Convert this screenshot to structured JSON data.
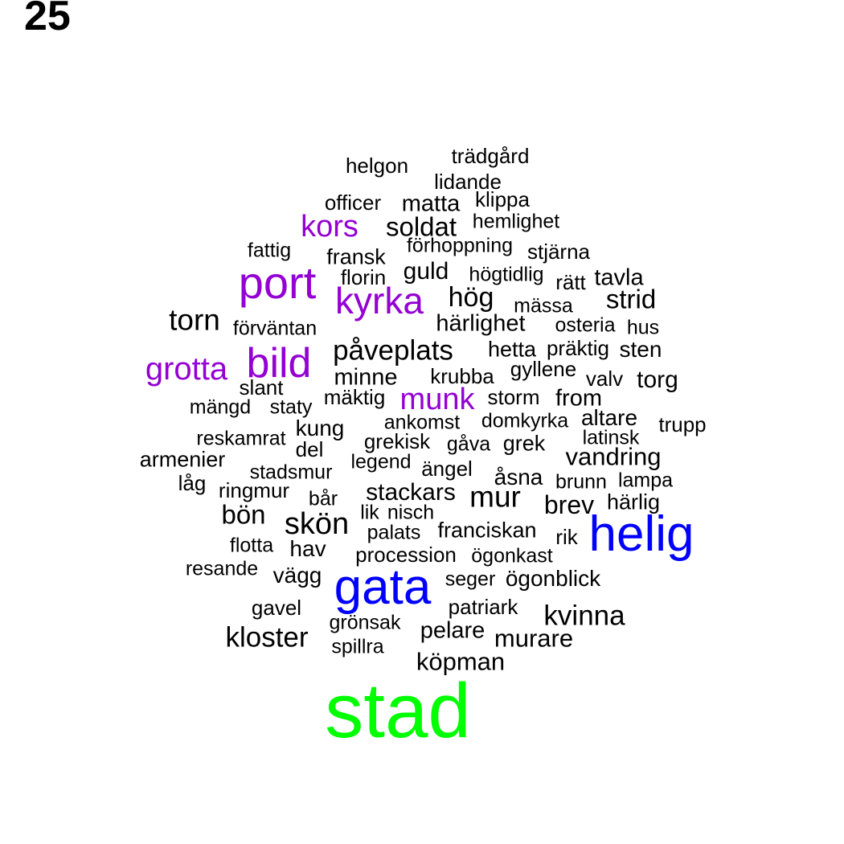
{
  "page_number": "25",
  "colors": {
    "black": "#000000",
    "purple": "#9400d3",
    "blue": "#0000ff",
    "green": "#00ff00"
  },
  "words": [
    {
      "text": "trädgård",
      "color": "black"
    },
    {
      "text": "helgon",
      "color": "black"
    },
    {
      "text": "lidande",
      "color": "black"
    },
    {
      "text": "officer",
      "color": "black"
    },
    {
      "text": "matta",
      "color": "black"
    },
    {
      "text": "klippa",
      "color": "black"
    },
    {
      "text": "kors",
      "color": "purple"
    },
    {
      "text": "soldat",
      "color": "black"
    },
    {
      "text": "hemlighet",
      "color": "black"
    },
    {
      "text": "förhoppning",
      "color": "black"
    },
    {
      "text": "fattig",
      "color": "black"
    },
    {
      "text": "stjärna",
      "color": "black"
    },
    {
      "text": "fransk",
      "color": "black"
    },
    {
      "text": "port",
      "color": "purple"
    },
    {
      "text": "guld",
      "color": "black"
    },
    {
      "text": "florin",
      "color": "black"
    },
    {
      "text": "högtidlig",
      "color": "black"
    },
    {
      "text": "rätt",
      "color": "black"
    },
    {
      "text": "tavla",
      "color": "black"
    },
    {
      "text": "kyrka",
      "color": "purple"
    },
    {
      "text": "hög",
      "color": "black"
    },
    {
      "text": "strid",
      "color": "black"
    },
    {
      "text": "mässa",
      "color": "black"
    },
    {
      "text": "torn",
      "color": "black"
    },
    {
      "text": "härlighet",
      "color": "black"
    },
    {
      "text": "förväntan",
      "color": "black"
    },
    {
      "text": "osteria",
      "color": "black"
    },
    {
      "text": "hus",
      "color": "black"
    },
    {
      "text": "påveplats",
      "color": "black"
    },
    {
      "text": "hetta",
      "color": "black"
    },
    {
      "text": "präktig",
      "color": "black"
    },
    {
      "text": "sten",
      "color": "black"
    },
    {
      "text": "bild",
      "color": "purple"
    },
    {
      "text": "grotta",
      "color": "purple"
    },
    {
      "text": "gyllene",
      "color": "black"
    },
    {
      "text": "minne",
      "color": "black"
    },
    {
      "text": "krubba",
      "color": "black"
    },
    {
      "text": "valv",
      "color": "black"
    },
    {
      "text": "torg",
      "color": "black"
    },
    {
      "text": "slant",
      "color": "black"
    },
    {
      "text": "mäktig",
      "color": "black"
    },
    {
      "text": "munk",
      "color": "purple"
    },
    {
      "text": "storm",
      "color": "black"
    },
    {
      "text": "from",
      "color": "black"
    },
    {
      "text": "mängd",
      "color": "black"
    },
    {
      "text": "staty",
      "color": "black"
    },
    {
      "text": "ankomst",
      "color": "black"
    },
    {
      "text": "domkyrka",
      "color": "black"
    },
    {
      "text": "altare",
      "color": "black"
    },
    {
      "text": "trupp",
      "color": "black"
    },
    {
      "text": "kung",
      "color": "black"
    },
    {
      "text": "reskamrat",
      "color": "black"
    },
    {
      "text": "grekisk",
      "color": "black"
    },
    {
      "text": "gåva",
      "color": "black"
    },
    {
      "text": "grek",
      "color": "black"
    },
    {
      "text": "latinsk",
      "color": "black"
    },
    {
      "text": "del",
      "color": "black"
    },
    {
      "text": "armenier",
      "color": "black"
    },
    {
      "text": "legend",
      "color": "black"
    },
    {
      "text": "vandring",
      "color": "black"
    },
    {
      "text": "ängel",
      "color": "black"
    },
    {
      "text": "stadsmur",
      "color": "black"
    },
    {
      "text": "åsna",
      "color": "black"
    },
    {
      "text": "låg",
      "color": "black"
    },
    {
      "text": "brunn",
      "color": "black"
    },
    {
      "text": "lampa",
      "color": "black"
    },
    {
      "text": "ringmur",
      "color": "black"
    },
    {
      "text": "stackars",
      "color": "black"
    },
    {
      "text": "mur",
      "color": "black"
    },
    {
      "text": "bår",
      "color": "black"
    },
    {
      "text": "brev",
      "color": "black"
    },
    {
      "text": "härlig",
      "color": "black"
    },
    {
      "text": "bön",
      "color": "black"
    },
    {
      "text": "lik",
      "color": "black"
    },
    {
      "text": "nisch",
      "color": "black"
    },
    {
      "text": "skön",
      "color": "black"
    },
    {
      "text": "helig",
      "color": "blue"
    },
    {
      "text": "franciskan",
      "color": "black"
    },
    {
      "text": "palats",
      "color": "black"
    },
    {
      "text": "rik",
      "color": "black"
    },
    {
      "text": "flotta",
      "color": "black"
    },
    {
      "text": "hav",
      "color": "black"
    },
    {
      "text": "procession",
      "color": "black"
    },
    {
      "text": "ögonkast",
      "color": "black"
    },
    {
      "text": "resande",
      "color": "black"
    },
    {
      "text": "vägg",
      "color": "black"
    },
    {
      "text": "gata",
      "color": "blue"
    },
    {
      "text": "seger",
      "color": "black"
    },
    {
      "text": "ögonblick",
      "color": "black"
    },
    {
      "text": "gavel",
      "color": "black"
    },
    {
      "text": "patriark",
      "color": "black"
    },
    {
      "text": "kvinna",
      "color": "black"
    },
    {
      "text": "grönsak",
      "color": "black"
    },
    {
      "text": "kloster",
      "color": "black"
    },
    {
      "text": "pelare",
      "color": "black"
    },
    {
      "text": "murare",
      "color": "black"
    },
    {
      "text": "spillra",
      "color": "black"
    },
    {
      "text": "köpman",
      "color": "black"
    },
    {
      "text": "stad",
      "color": "green"
    }
  ]
}
